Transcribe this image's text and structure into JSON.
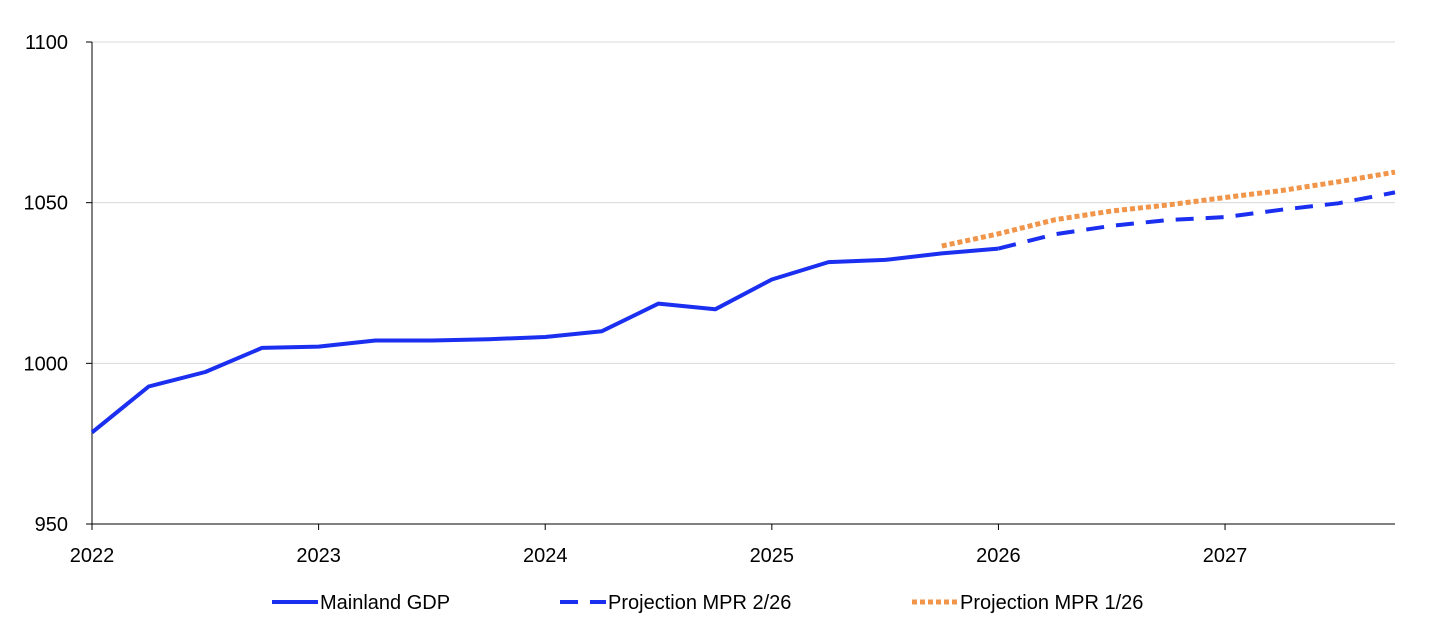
{
  "colors": {
    "actual": "#1a2ff0",
    "projection_2": "#1a2ff0",
    "projection_1": "#f0954a",
    "grid": "#d9d9d9",
    "axis": "#000000"
  },
  "chart_data": {
    "type": "line",
    "xlim": [
      2022,
      2027.75
    ],
    "ylim": [
      950,
      1100
    ],
    "x_ticks": [
      2022,
      2023,
      2024,
      2025,
      2026,
      2027
    ],
    "y_ticks": [
      950,
      1000,
      1050,
      1100
    ],
    "grid": "horizontal",
    "legend_position": "bottom",
    "series": [
      {
        "name": "Mainland GDP",
        "style": "solid",
        "x": [
          2022.0,
          2022.25,
          2022.5,
          2022.75,
          2023.0,
          2023.25,
          2023.5,
          2023.75,
          2024.0,
          2024.25,
          2024.5,
          2024.75,
          2025.0,
          2025.25,
          2025.5,
          2025.75,
          2026.0
        ],
        "y": [
          978.5,
          992.8,
          997.3,
          1004.8,
          1005.2,
          1007.1,
          1007.1,
          1007.5,
          1008.2,
          1010.0,
          1018.6,
          1016.8,
          1026.1,
          1031.5,
          1032.2,
          1034.2,
          1035.7
        ]
      },
      {
        "name": "Projection MPR 2/26",
        "style": "dashed",
        "x": [
          2026.0,
          2026.25,
          2026.5,
          2026.75,
          2027.0,
          2027.25,
          2027.5,
          2027.75
        ],
        "y": [
          1035.7,
          1040.2,
          1042.8,
          1044.6,
          1045.5,
          1047.8,
          1049.8,
          1053.2
        ]
      },
      {
        "name": "Projection MPR 1/26",
        "style": "dotted",
        "x": [
          2025.75,
          2026.0,
          2026.25,
          2026.5,
          2026.75,
          2027.0,
          2027.25,
          2027.5,
          2027.75
        ],
        "y": [
          1036.5,
          1040.3,
          1044.7,
          1047.4,
          1049.3,
          1051.6,
          1053.8,
          1056.5,
          1059.5
        ]
      }
    ]
  }
}
